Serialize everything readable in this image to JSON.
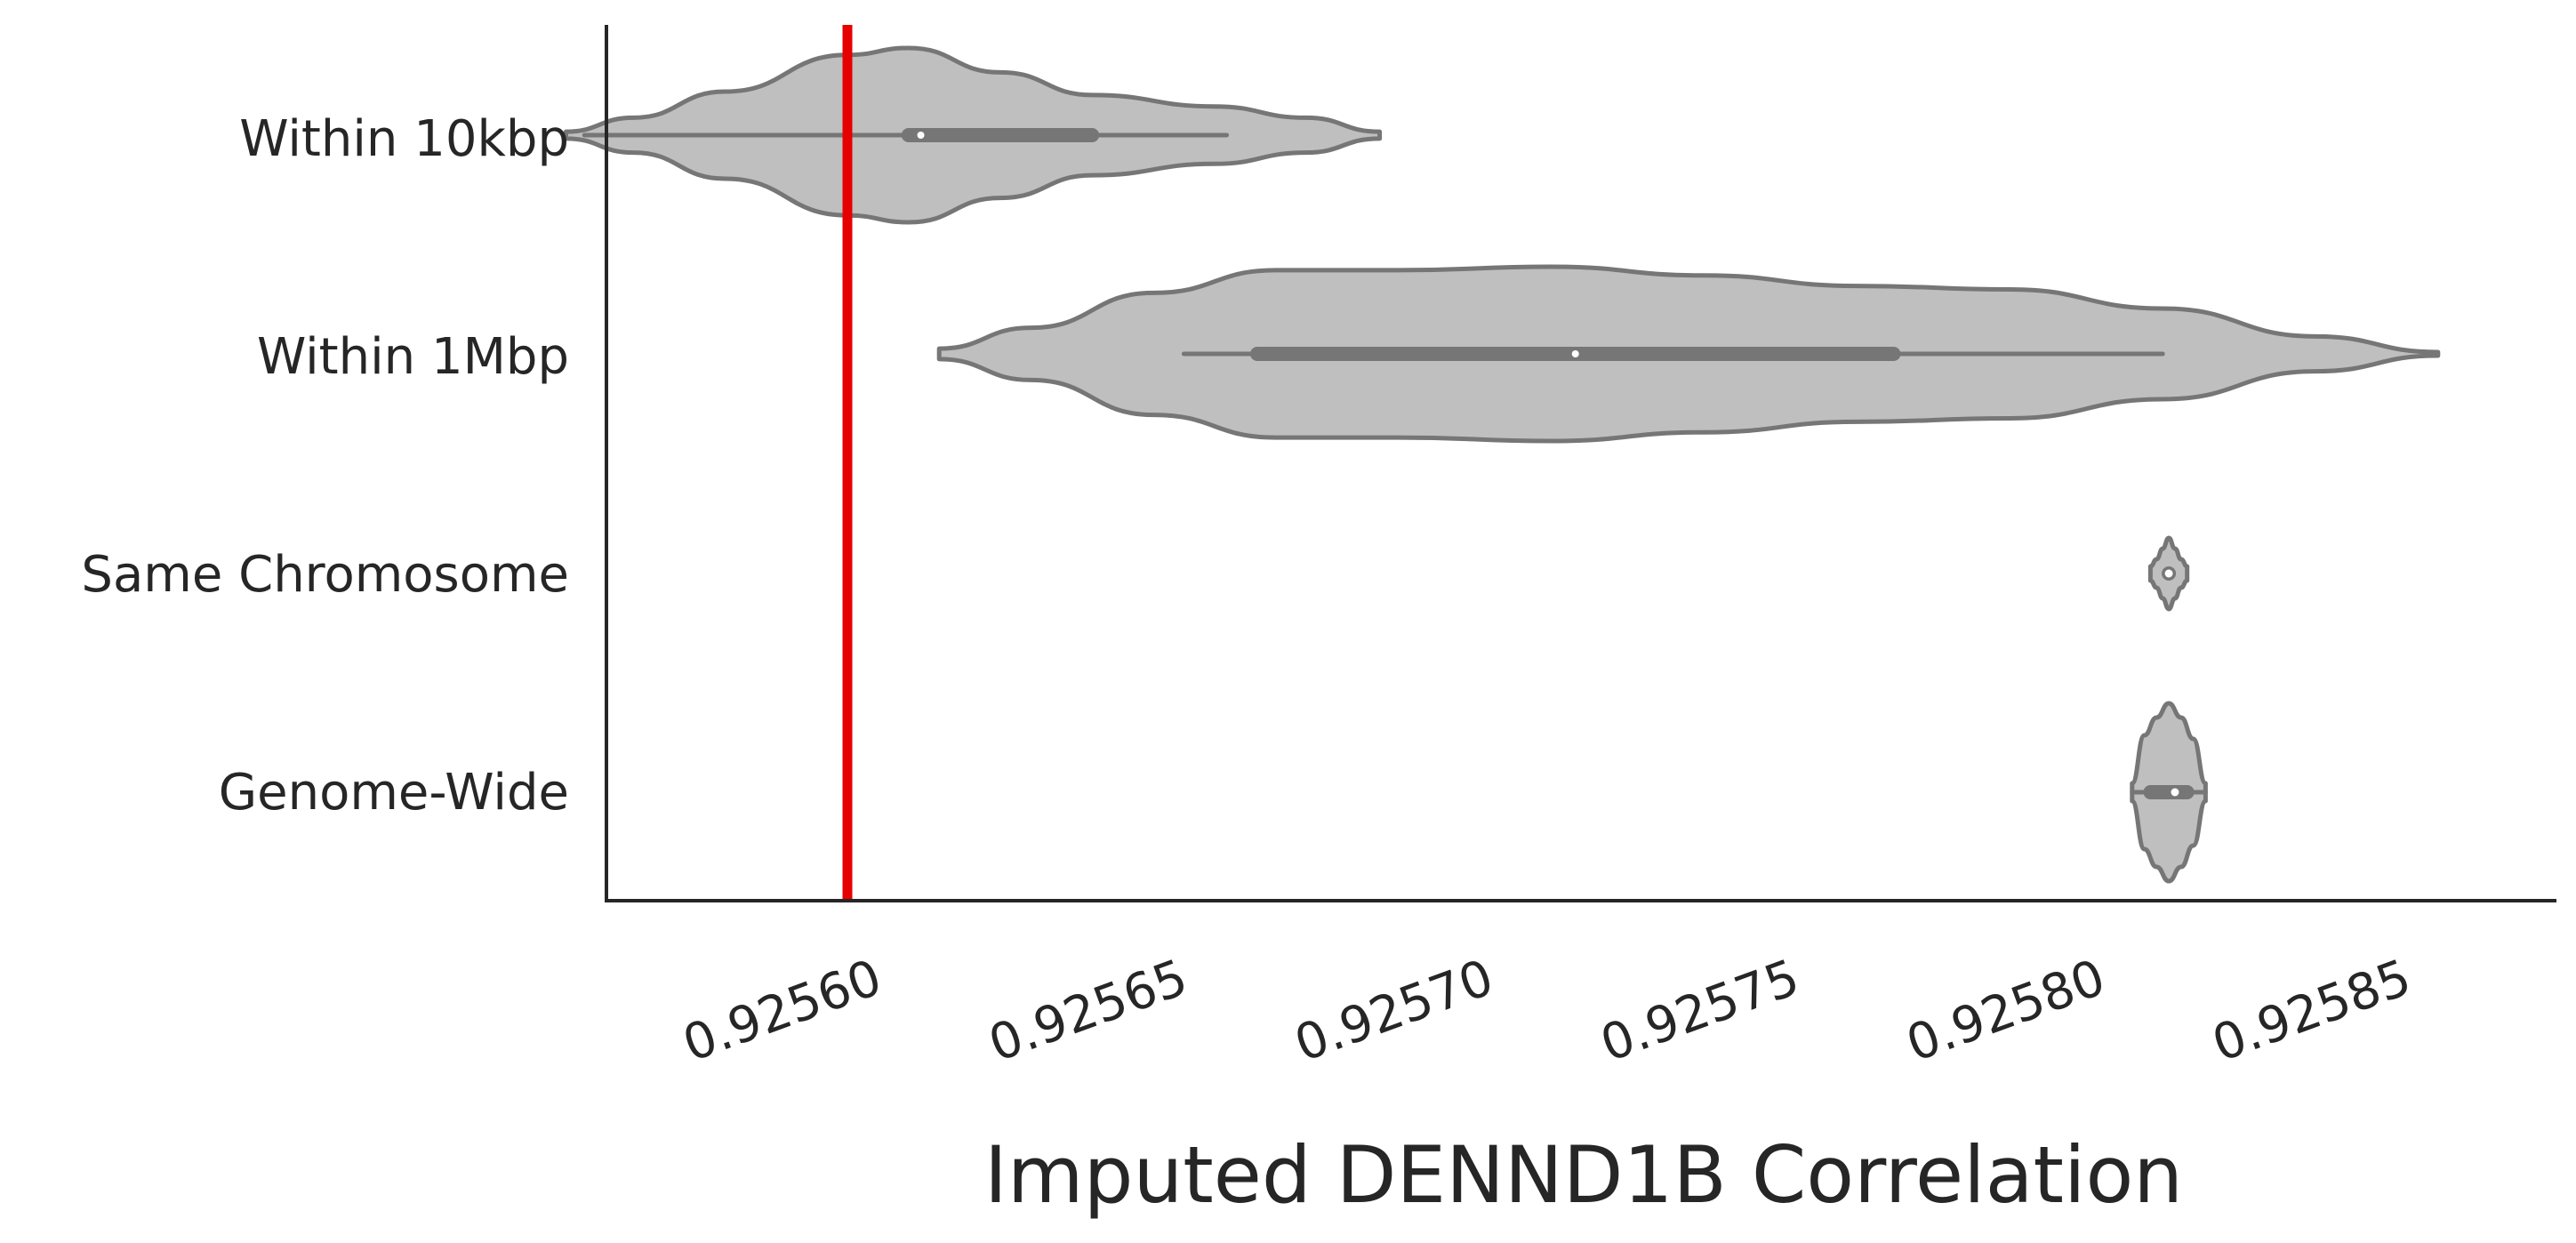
{
  "chart_data": {
    "type": "violin",
    "orientation": "horizontal",
    "xlabel": "Imputed DENND1B Correlation",
    "xlim": [
      0.92556,
      0.92588
    ],
    "xticks": [
      0.9256,
      0.92565,
      0.9257,
      0.92575,
      0.9258,
      0.92585
    ],
    "xtick_labels": [
      "0.92560",
      "0.92565",
      "0.92570",
      "0.92575",
      "0.92580",
      "0.92585"
    ],
    "reference_line": {
      "x": 0.9256,
      "color": "#e60000"
    },
    "fill_color": "#bfbfbf",
    "edge_color": "#767676",
    "grid": false,
    "categories": [
      "Within 10kbp",
      "Within 1Mbp",
      "Same Chromosome",
      "Genome-Wide"
    ],
    "violins": [
      {
        "category": "Within 10kbp",
        "min": 0.925557,
        "q1": 0.92561,
        "median": 0.925612,
        "q3": 0.92564,
        "max": 0.925662,
        "density_min": 0.925554,
        "density_max": 0.925687,
        "density_x": [
          0.925554,
          0.925565,
          0.92558,
          0.9256,
          0.92561,
          0.925625,
          0.92564,
          0.92566,
          0.925675,
          0.925687
        ],
        "density_w": [
          0.04,
          0.2,
          0.5,
          0.92,
          1.0,
          0.72,
          0.46,
          0.33,
          0.2,
          0.04
        ]
      },
      {
        "category": "Within 1Mbp",
        "min": 0.925655,
        "q1": 0.925667,
        "median": 0.925719,
        "q3": 0.925771,
        "max": 0.925815,
        "density_min": 0.925615,
        "density_max": 0.92586,
        "density_x": [
          0.925615,
          0.92563,
          0.92565,
          0.92567,
          0.92569,
          0.925715,
          0.92574,
          0.925765,
          0.92579,
          0.925815,
          0.92584,
          0.92586
        ],
        "density_w": [
          0.06,
          0.3,
          0.7,
          0.96,
          0.96,
          1.0,
          0.9,
          0.78,
          0.74,
          0.52,
          0.2,
          0.02
        ],
        "left_cap": true
      },
      {
        "category": "Same Chromosome",
        "min": 0.925816,
        "q1": 0.925816,
        "median": 0.925816,
        "q3": 0.925816,
        "max": 0.925816,
        "density_min": 0.925813,
        "density_max": 0.925819,
        "density_x": [
          0.925813,
          0.925814,
          0.925815,
          0.925816,
          0.925817,
          0.925818,
          0.925819
        ],
        "density_w": [
          0.04,
          0.08,
          0.14,
          0.2,
          0.14,
          0.08,
          0.04
        ],
        "tall_profile": true
      },
      {
        "category": "Genome-Wide",
        "min": 0.92581,
        "q1": 0.925813,
        "median": 0.925817,
        "q3": 0.925819,
        "max": 0.925822,
        "density_min": 0.92581,
        "density_max": 0.925822,
        "density_x": [
          0.92581,
          0.925812,
          0.925814,
          0.925816,
          0.925818,
          0.92582,
          0.925822
        ],
        "density_w": [
          0.05,
          0.32,
          0.42,
          0.5,
          0.42,
          0.3,
          0.05
        ],
        "tall_profile": true
      }
    ]
  }
}
